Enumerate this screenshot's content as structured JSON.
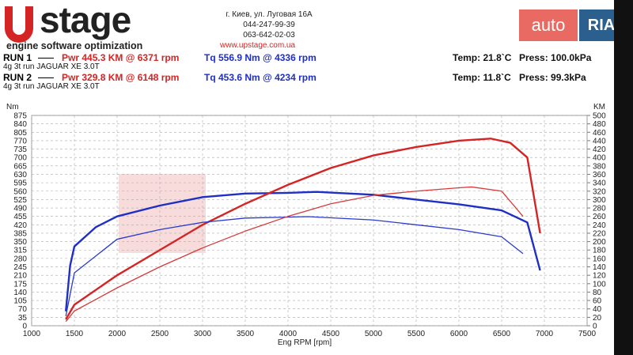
{
  "header": {
    "logo": "stage",
    "slogan": "engine software optimization",
    "address": [
      "г. Киев, ул. Луговая 16А",
      "044-247-99-39",
      "063-642-02-03"
    ],
    "website": "www.upstage.com.ua",
    "watermark": {
      "auto": "auto",
      "ria": "RIA"
    },
    "runs": [
      {
        "run": "RUN 1",
        "desc": "4g 3t run JAGUAR XE 3.0T",
        "pwr": "Pwr  445.3 KM @ 6371 rpm",
        "tq": "Tq 556.9 Nm @ 4336 rpm",
        "temp": "Temp: 21.8`C",
        "press": "Press: 100.0kPa"
      },
      {
        "run": "RUN 2",
        "desc": "4g 3t run JAGUAR XE 3.0T",
        "pwr": "Pwr  329.8 KM @ 6148 rpm",
        "tq": "Tq 453.6 Nm @ 4234 rpm",
        "temp": "Temp: 11.8`C",
        "press": "Press: 99.3kPa"
      }
    ]
  },
  "chart_data": {
    "type": "line",
    "xlabel": "Eng RPM [rpm]",
    "ylabel": "Nm",
    "y2label": "KM",
    "xlim": [
      1000,
      7500
    ],
    "xticks": [
      1000,
      1500,
      2000,
      2500,
      3000,
      3500,
      4000,
      4500,
      5000,
      5500,
      6000,
      6500,
      7000,
      7500
    ],
    "ylim": [
      0,
      875
    ],
    "yticks": [
      0,
      35,
      70,
      105,
      140,
      175,
      210,
      245,
      280,
      315,
      350,
      385,
      420,
      455,
      490,
      525,
      560,
      595,
      630,
      665,
      700,
      735,
      770,
      805,
      840,
      875
    ],
    "y2lim": [
      0,
      500
    ],
    "y2ticks": [
      0,
      20,
      40,
      60,
      80,
      100,
      120,
      140,
      160,
      180,
      200,
      220,
      240,
      260,
      280,
      300,
      320,
      340,
      360,
      380,
      400,
      420,
      440,
      460,
      480,
      500
    ],
    "grid": true,
    "series": [
      {
        "color": "#1f2fc4",
        "width": 2.4,
        "axis": "y",
        "x": [
          1400,
          1450,
          1500,
          1750,
          2000,
          2500,
          3000,
          3500,
          4000,
          4336,
          5000,
          5500,
          6000,
          6500,
          6800,
          6950
        ],
        "values": [
          60,
          250,
          330,
          410,
          455,
          500,
          535,
          550,
          553,
          557,
          545,
          525,
          505,
          480,
          430,
          230
        ]
      },
      {
        "color": "#d42424",
        "width": 2.4,
        "axis": "y2",
        "x": [
          1400,
          1500,
          2000,
          2500,
          3000,
          3500,
          4000,
          4500,
          5000,
          5500,
          6000,
          6371,
          6600,
          6800,
          6950
        ],
        "values": [
          15,
          50,
          120,
          180,
          240,
          290,
          335,
          375,
          405,
          425,
          440,
          445,
          435,
          400,
          220
        ]
      },
      {
        "color": "#2a3ad0",
        "width": 1.3,
        "axis": "y",
        "x": [
          1400,
          1500,
          2000,
          2500,
          3000,
          3500,
          4000,
          4234,
          5000,
          5500,
          6000,
          6500,
          6750
        ],
        "values": [
          40,
          220,
          360,
          400,
          430,
          448,
          452,
          454,
          440,
          420,
          400,
          370,
          300
        ]
      },
      {
        "color": "#d83a3a",
        "width": 1.3,
        "axis": "y2",
        "x": [
          1400,
          1500,
          2000,
          2500,
          3000,
          3500,
          4000,
          4500,
          5000,
          5500,
          6000,
          6148,
          6500,
          6750
        ],
        "values": [
          10,
          35,
          90,
          140,
          185,
          225,
          260,
          290,
          310,
          320,
          328,
          330,
          320,
          260
        ]
      }
    ]
  }
}
